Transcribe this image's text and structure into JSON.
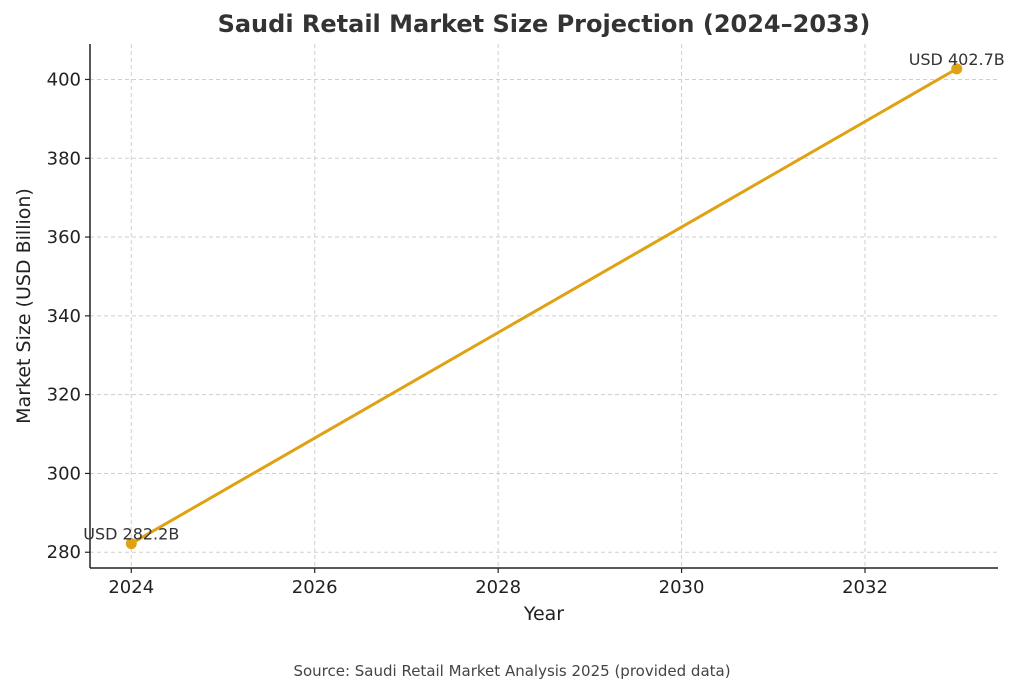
{
  "chart_data": {
    "type": "line",
    "title": "Saudi Retail Market Size Projection (2024–2033)",
    "xlabel": "Year",
    "ylabel": "Market Size (USD Billion)",
    "xlim": [
      2023.55,
      2033.45
    ],
    "ylim": [
      276,
      409
    ],
    "grid": true,
    "x_ticks": [
      2024,
      2026,
      2028,
      2030,
      2032
    ],
    "y_ticks": [
      280,
      300,
      320,
      340,
      360,
      380,
      400
    ],
    "series": [
      {
        "name": "Market Size",
        "color": "#E0A112",
        "x": [
          2024,
          2033
        ],
        "y": [
          282.2,
          402.7
        ],
        "labels": [
          "USD 282.2B",
          "USD 402.7B"
        ]
      }
    ]
  },
  "footer": {
    "source": "Source: Saudi Retail Market Analysis 2025 (provided data)"
  }
}
